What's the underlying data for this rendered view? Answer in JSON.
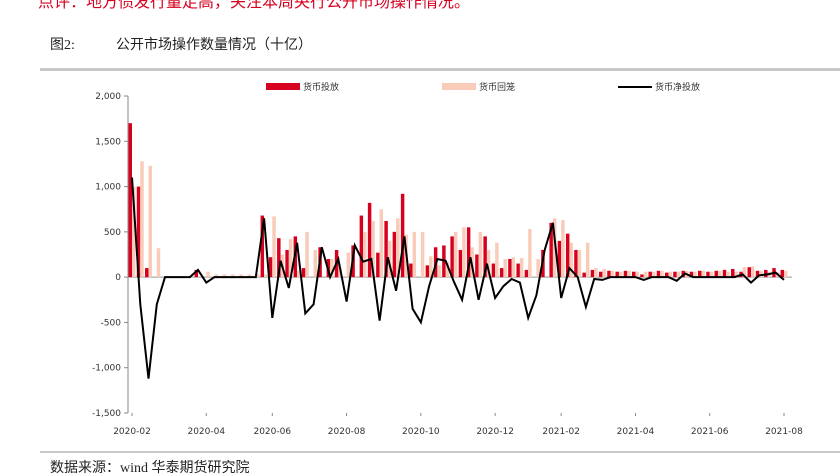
{
  "top_note": "点评：地方债发行量走高，关注本周央行公开市场操作情况。",
  "figure_label": "图2:",
  "source": "数据来源：wind 华泰期货研究院",
  "chart_data": {
    "type": "combo",
    "title": "公开市场操作数量情况（十亿）",
    "categories": [
      "2020-02",
      null,
      null,
      null,
      null,
      null,
      null,
      null,
      null,
      "2020-04",
      null,
      null,
      null,
      null,
      null,
      null,
      null,
      "2020-06",
      null,
      null,
      null,
      null,
      null,
      null,
      null,
      null,
      "2020-08",
      null,
      null,
      null,
      null,
      null,
      null,
      null,
      null,
      "2020-10",
      null,
      null,
      null,
      null,
      null,
      null,
      null,
      null,
      "2020-12",
      null,
      null,
      null,
      null,
      null,
      null,
      null,
      "2021-02",
      null,
      null,
      null,
      null,
      null,
      null,
      null,
      null,
      "2021-04",
      null,
      null,
      null,
      null,
      null,
      null,
      null,
      null,
      "2021-06",
      null,
      null,
      null,
      null,
      null,
      null,
      null,
      null,
      "2021-08"
    ],
    "series": [
      {
        "name": "货币投放",
        "kind": "bar",
        "color": "#d7001f",
        "values": [
          1700,
          1000,
          100,
          0,
          0,
          0,
          0,
          0,
          80,
          0,
          0,
          0,
          0,
          0,
          0,
          0,
          680,
          220,
          430,
          300,
          450,
          100,
          0,
          330,
          200,
          300,
          0,
          350,
          680,
          820,
          270,
          620,
          500,
          920,
          150,
          0,
          130,
          330,
          350,
          450,
          300,
          550,
          250,
          450,
          150,
          100,
          200,
          150,
          80,
          0,
          300,
          600,
          400,
          480,
          300,
          50,
          80,
          60,
          70,
          60,
          70,
          60,
          30,
          60,
          70,
          50,
          60,
          70,
          60,
          70,
          60,
          70,
          80,
          90,
          60,
          110,
          70,
          80,
          100,
          80
        ]
      },
      {
        "name": "货币回笼",
        "kind": "bar",
        "color": "#f8ccb8",
        "values": [
          1000,
          1280,
          1230,
          320,
          0,
          0,
          0,
          0,
          0,
          60,
          30,
          30,
          30,
          30,
          30,
          30,
          30,
          670,
          250,
          420,
          70,
          500,
          300,
          0,
          200,
          100,
          270,
          0,
          500,
          620,
          750,
          400,
          650,
          470,
          500,
          500,
          230,
          130,
          170,
          500,
          550,
          330,
          500,
          300,
          380,
          200,
          220,
          210,
          530,
          200,
          0,
          650,
          630,
          380,
          300,
          380,
          100,
          90,
          70,
          60,
          70,
          60,
          60,
          60,
          70,
          60,
          60,
          70,
          60,
          70,
          60,
          70,
          60,
          60,
          110,
          120,
          70,
          60,
          50,
          70
        ]
      },
      {
        "name": "货币净投放",
        "kind": "line",
        "color": "#000000",
        "values": [
          1100,
          -300,
          -1120,
          -300,
          0,
          0,
          0,
          0,
          80,
          -60,
          0,
          0,
          0,
          0,
          0,
          0,
          650,
          -450,
          180,
          -120,
          380,
          -400,
          -300,
          330,
          0,
          200,
          -270,
          350,
          170,
          200,
          -480,
          220,
          -150,
          450,
          -350,
          -500,
          -100,
          200,
          180,
          -50,
          -250,
          220,
          -250,
          150,
          -230,
          -100,
          -20,
          -60,
          -450,
          -200,
          300,
          600,
          -230,
          100,
          0,
          -330,
          -20,
          -30,
          0,
          0,
          0,
          0,
          -30,
          0,
          0,
          0,
          -40,
          40,
          0,
          0,
          0,
          0,
          0,
          0,
          30,
          -60,
          20,
          30,
          50,
          -30
        ]
      }
    ],
    "ylim": [
      -1500,
      2000
    ],
    "yticks": [
      {
        "value": -1500,
        "label": "-1,500"
      },
      {
        "value": -1000,
        "label": "-1,000"
      },
      -500,
      0,
      500,
      {
        "value": 1000,
        "label": "1,000"
      },
      {
        "value": 1500,
        "label": "1,500"
      },
      {
        "value": 2000,
        "label": "2,000"
      }
    ],
    "grid": false,
    "legend": "top"
  }
}
